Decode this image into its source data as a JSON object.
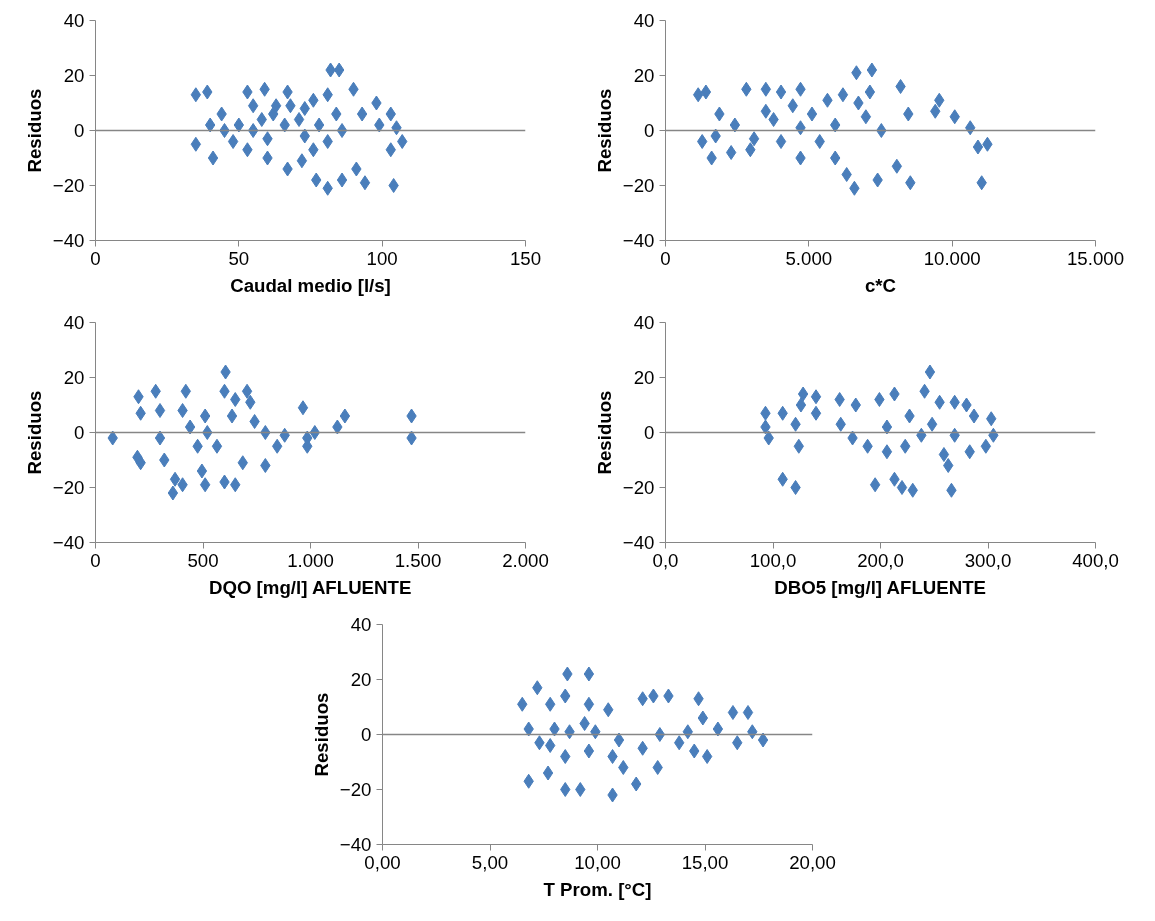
{
  "chart_data": [
    {
      "type": "scatter",
      "xlabel": "Caudal medio [l/s]",
      "ylabel": "Residuos",
      "marker": "diamond",
      "grid": false,
      "xlim": [
        0,
        150
      ],
      "ylim": [
        -40,
        40
      ],
      "xticks": [
        0,
        50,
        100,
        150
      ],
      "yticks": [
        -40,
        -20,
        0,
        20,
        40
      ],
      "ref_lines": [
        {
          "axis": "y",
          "value": 0,
          "color": "#868686"
        }
      ],
      "series": [
        {
          "color": "#4a7ebb",
          "x": [
            35,
            39,
            35,
            41,
            40,
            44,
            53,
            59,
            67,
            55,
            62,
            71,
            76,
            81,
            82,
            85,
            90,
            93,
            98,
            103,
            105,
            107,
            104,
            81,
            86,
            91,
            94,
            77,
            72,
            67,
            60,
            53,
            48,
            45,
            50,
            55,
            60,
            66,
            73,
            78,
            84,
            86,
            68,
            73,
            63,
            58,
            76,
            81,
            99,
            103
          ],
          "values": [
            13,
            14,
            -5,
            -10,
            2,
            6,
            14,
            15,
            14,
            9,
            6,
            4,
            11,
            13,
            22,
            22,
            15,
            6,
            10,
            6,
            1,
            -4,
            -20,
            -21,
            -18,
            -14,
            -19,
            -18,
            -11,
            -14,
            -10,
            -7,
            -4,
            0,
            2,
            0,
            -3,
            2,
            -2,
            2,
            6,
            0,
            9,
            8,
            9,
            4,
            -7,
            -4,
            2,
            -7
          ]
        }
      ]
    },
    {
      "type": "scatter",
      "xlabel": "c*C",
      "ylabel": "Residuos",
      "marker": "diamond",
      "grid": false,
      "xlim": [
        0,
        15000
      ],
      "ylim": [
        -40,
        40
      ],
      "xticks": [
        0,
        {
          "value": 5000,
          "label": "5.000"
        },
        {
          "value": 10000,
          "label": "10.000"
        },
        {
          "value": 15000,
          "label": "15.000"
        }
      ],
      "yticks": [
        -40,
        -20,
        0,
        20,
        40
      ],
      "ref_lines": [
        {
          "axis": "y",
          "value": 0,
          "color": "#868686"
        }
      ],
      "series": [
        {
          "color": "#4a7ebb",
          "x": [
            1140,
            1410,
            1280,
            1610,
            1880,
            2820,
            3500,
            4030,
            4710,
            2420,
            3090,
            2290,
            2960,
            3770,
            4440,
            5110,
            5650,
            6190,
            6730,
            7130,
            6660,
            7200,
            8200,
            8470,
            9410,
            9550,
            10090,
            10630,
            11230,
            10900,
            11030,
            8540,
            8070,
            7400,
            6590,
            6320,
            5920,
            5380,
            4710,
            4030,
            4710,
            5920,
            7530,
            6990,
            3500,
            1750
          ],
          "values": [
            13,
            14,
            -4,
            -10,
            6,
            15,
            15,
            14,
            15,
            2,
            -3,
            -8,
            -7,
            4,
            9,
            6,
            11,
            13,
            10,
            14,
            21,
            22,
            16,
            6,
            7,
            11,
            5,
            1,
            -5,
            -6,
            -19,
            -19,
            -13,
            -18,
            -21,
            -16,
            -10,
            -4,
            -10,
            -4,
            1,
            2,
            0,
            5,
            7,
            -2
          ]
        }
      ]
    },
    {
      "type": "scatter",
      "xlabel": "DQO [mg/l] AFLUENTE",
      "ylabel": "Residuos",
      "marker": "diamond",
      "grid": false,
      "xlim": [
        0,
        2000
      ],
      "ylim": [
        -40,
        40
      ],
      "xticks": [
        0,
        500,
        {
          "value": 1000,
          "label": "1.000"
        },
        {
          "value": 1500,
          "label": "1.500"
        },
        {
          "value": 2000,
          "label": "2.000"
        }
      ],
      "yticks": [
        -40,
        -20,
        0,
        20,
        40
      ],
      "ref_lines": [
        {
          "axis": "y",
          "value": 0,
          "color": "#868686"
        }
      ],
      "series": [
        {
          "color": "#4a7ebb",
          "x": [
            80,
            200,
            210,
            195,
            210,
            280,
            300,
            300,
            320,
            370,
            360,
            405,
            420,
            405,
            440,
            510,
            510,
            495,
            565,
            605,
            600,
            650,
            635,
            600,
            650,
            705,
            720,
            685,
            740,
            790,
            790,
            845,
            880,
            965,
            985,
            985,
            1020,
            1125,
            1160,
            1470,
            1470,
            520,
            475
          ],
          "values": [
            -2,
            13,
            7,
            -9,
            -11,
            15,
            8,
            -2,
            -10,
            -17,
            -22,
            -19,
            15,
            8,
            2,
            6,
            -19,
            -14,
            -5,
            22,
            15,
            12,
            6,
            -18,
            -19,
            15,
            11,
            -11,
            4,
            0,
            -12,
            -5,
            -1,
            9,
            -2,
            -5,
            0,
            2,
            6,
            6,
            -2,
            0,
            -5
          ]
        }
      ]
    },
    {
      "type": "scatter",
      "xlabel": "DBO5 [mg/l] AFLUENTE",
      "ylabel": "Residuos",
      "marker": "diamond",
      "grid": false,
      "xlim": [
        0,
        400
      ],
      "ylim": [
        -40,
        40
      ],
      "xticks": [
        {
          "value": 0,
          "label": "0,0"
        },
        {
          "value": 100,
          "label": "100,0"
        },
        {
          "value": 200,
          "label": "200,0"
        },
        {
          "value": 300,
          "label": "300,0"
        },
        {
          "value": 400,
          "label": "400,0"
        }
      ],
      "yticks": [
        -40,
        -20,
        0,
        20,
        40
      ],
      "ref_lines": [
        {
          "axis": "y",
          "value": 0,
          "color": "#868686"
        }
      ],
      "series": [
        {
          "color": "#4a7ebb",
          "x": [
            93,
            93,
            96,
            109,
            109,
            121,
            124,
            121,
            128,
            126,
            140,
            140,
            162,
            177,
            163,
            174,
            195,
            199,
            213,
            220,
            230,
            213,
            206,
            188,
            206,
            227,
            241,
            246,
            255,
            259,
            266,
            263,
            269,
            280,
            287,
            303,
            305,
            298,
            283,
            269,
            238,
            223,
            248
          ],
          "values": [
            7,
            2,
            -2,
            7,
            -17,
            -20,
            -5,
            3,
            14,
            10,
            7,
            13,
            12,
            10,
            3,
            -2,
            -19,
            12,
            14,
            -20,
            -21,
            -17,
            -7,
            -5,
            2,
            6,
            15,
            22,
            11,
            -8,
            -21,
            -12,
            11,
            10,
            6,
            5,
            -1,
            -5,
            -7,
            -1,
            -1,
            -5,
            3
          ]
        }
      ]
    },
    {
      "type": "scatter",
      "xlabel": "T Prom. [°C]",
      "ylabel": "Residuos",
      "marker": "diamond",
      "grid": false,
      "xlim": [
        0,
        20
      ],
      "ylim": [
        -40,
        40
      ],
      "xticks": [
        {
          "value": 0,
          "label": "0,00"
        },
        {
          "value": 5,
          "label": "5,00"
        },
        {
          "value": 10,
          "label": "10,00"
        },
        {
          "value": 15,
          "label": "15,00"
        },
        {
          "value": 20,
          "label": "20,00"
        }
      ],
      "yticks": [
        -40,
        -20,
        0,
        20,
        40
      ],
      "ref_lines": [
        {
          "axis": "y",
          "value": 0,
          "color": "#868686"
        }
      ],
      "series": [
        {
          "color": "#4a7ebb",
          "x": [
            6.5,
            6.8,
            6.8,
            7.2,
            7.3,
            7.7,
            7.8,
            8.0,
            8.6,
            8.5,
            8.5,
            8.5,
            9.2,
            9.6,
            9.6,
            9.4,
            9.9,
            10.5,
            10.7,
            10.7,
            11.0,
            11.2,
            11.8,
            12.1,
            12.6,
            13.3,
            12.1,
            12.8,
            12.9,
            13.8,
            14.7,
            14.9,
            14.5,
            15.1,
            15.6,
            16.3,
            16.5,
            17.0,
            17.2,
            17.7,
            8.7,
            7.8,
            9.6,
            14.2
          ],
          "values": [
            11,
            2,
            -17,
            17,
            -3,
            -14,
            11,
            2,
            22,
            14,
            -8,
            -20,
            -20,
            22,
            11,
            4,
            1,
            9,
            -8,
            -22,
            -2,
            -12,
            -18,
            13,
            14,
            14,
            -5,
            -12,
            0,
            -3,
            13,
            6,
            -6,
            -8,
            2,
            8,
            -3,
            8,
            1,
            -2,
            1,
            -4,
            -6,
            1
          ]
        }
      ]
    }
  ]
}
